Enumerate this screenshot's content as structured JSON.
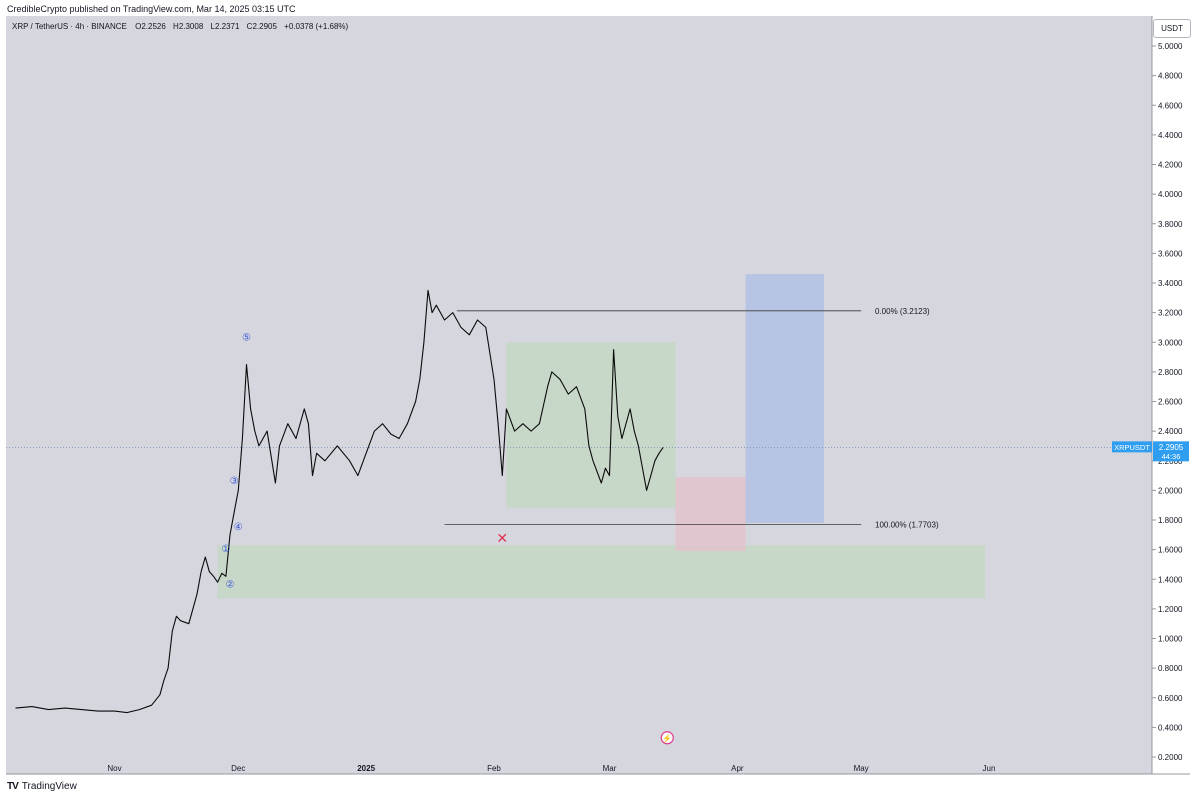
{
  "header": {
    "published": "CredibleCrypto published on TradingView.com, Mar 14, 2025 03:15 UTC",
    "symbol": "XRP / TetherUS · 4h · BINANCE",
    "ohlc": [
      {
        "key": "O",
        "value": "2.2526"
      },
      {
        "key": "H",
        "value": "2.3008"
      },
      {
        "key": "L",
        "value": "2.2371"
      },
      {
        "key": "C",
        "value": "2.2905"
      }
    ],
    "change": "+0.0378 (+1.68%)",
    "currency": "USDT"
  },
  "footer": {
    "brand": "TradingView",
    "logo_icon": "tradingview-logo-icon"
  },
  "price_tag": {
    "symbol": "XRPUSDT",
    "price": "2.2905",
    "countdown": "44:36",
    "color": "#2f9ef0"
  },
  "colors": {
    "background": "#d5d6de",
    "price_line": "#0b0b0b",
    "green_zone": "#c4d8c6",
    "red_zone": "#e3c3cd",
    "blue_zone": "#b3c1e4",
    "wave_label": "#3a55d8",
    "stop_marker": "#e03355"
  },
  "chart_data": {
    "type": "line",
    "title": "",
    "xlabel": "",
    "ylabel": "",
    "ylim": [
      0.2,
      5.1
    ],
    "y_ticks": [
      "0.2000",
      "0.4000",
      "0.6000",
      "0.8000",
      "1.0000",
      "1.2000",
      "1.4000",
      "1.6000",
      "1.8000",
      "2.0000",
      "2.2000",
      "2.4000",
      "2.6000",
      "2.8000",
      "3.0000",
      "3.2000",
      "3.4000",
      "3.6000",
      "3.8000",
      "4.0000",
      "4.2000",
      "4.4000",
      "4.6000",
      "4.8000",
      "5.0000"
    ],
    "x_ticks": [
      {
        "label": "Nov",
        "date": "2024-11-01"
      },
      {
        "label": "Dec",
        "date": "2024-12-01"
      },
      {
        "label": "2025",
        "date": "2025-01-01"
      },
      {
        "label": "Feb",
        "date": "2025-02-01"
      },
      {
        "label": "Mar",
        "date": "2025-03-01"
      },
      {
        "label": "Apr",
        "date": "2025-04-01"
      },
      {
        "label": "May",
        "date": "2025-05-01"
      },
      {
        "label": "Jun",
        "date": "2025-06-01"
      }
    ],
    "grid": false,
    "series": [
      {
        "points": [
          [
            "2024-10-08",
            0.53
          ],
          [
            "2024-10-12",
            0.54
          ],
          [
            "2024-10-16",
            0.52
          ],
          [
            "2024-10-20",
            0.53
          ],
          [
            "2024-10-24",
            0.52
          ],
          [
            "2024-10-28",
            0.51
          ],
          [
            "2024-11-01",
            0.51
          ],
          [
            "2024-11-04",
            0.5
          ],
          [
            "2024-11-07",
            0.52
          ],
          [
            "2024-11-10",
            0.55
          ],
          [
            "2024-11-12",
            0.62
          ],
          [
            "2024-11-13",
            0.72
          ],
          [
            "2024-11-14",
            0.8
          ],
          [
            "2024-11-15",
            1.05
          ],
          [
            "2024-11-16",
            1.15
          ],
          [
            "2024-11-17",
            1.12
          ],
          [
            "2024-11-19",
            1.1
          ],
          [
            "2024-11-21",
            1.3
          ],
          [
            "2024-11-22",
            1.45
          ],
          [
            "2024-11-23",
            1.55
          ],
          [
            "2024-11-24",
            1.45
          ],
          [
            "2024-11-25",
            1.42
          ],
          [
            "2024-11-26",
            1.38
          ],
          [
            "2024-11-27",
            1.44
          ],
          [
            "2024-11-28",
            1.42
          ],
          [
            "2024-11-29",
            1.7
          ],
          [
            "2024-11-30",
            1.85
          ],
          [
            "2024-12-01",
            2.0
          ],
          [
            "2024-12-02",
            2.35
          ],
          [
            "2024-12-03",
            2.85
          ],
          [
            "2024-12-04",
            2.55
          ],
          [
            "2024-12-05",
            2.4
          ],
          [
            "2024-12-06",
            2.3
          ],
          [
            "2024-12-08",
            2.4
          ],
          [
            "2024-12-10",
            2.05
          ],
          [
            "2024-12-11",
            2.3
          ],
          [
            "2024-12-13",
            2.45
          ],
          [
            "2024-12-15",
            2.35
          ],
          [
            "2024-12-17",
            2.55
          ],
          [
            "2024-12-18",
            2.45
          ],
          [
            "2024-12-19",
            2.1
          ],
          [
            "2024-12-20",
            2.25
          ],
          [
            "2024-12-22",
            2.2
          ],
          [
            "2024-12-25",
            2.3
          ],
          [
            "2024-12-28",
            2.2
          ],
          [
            "2024-12-30",
            2.1
          ],
          [
            "2025-01-01",
            2.25
          ],
          [
            "2025-01-03",
            2.4
          ],
          [
            "2025-01-05",
            2.45
          ],
          [
            "2025-01-07",
            2.38
          ],
          [
            "2025-01-09",
            2.35
          ],
          [
            "2025-01-11",
            2.45
          ],
          [
            "2025-01-13",
            2.6
          ],
          [
            "2025-01-14",
            2.75
          ],
          [
            "2025-01-15",
            3.0
          ],
          [
            "2025-01-16",
            3.35
          ],
          [
            "2025-01-17",
            3.2
          ],
          [
            "2025-01-18",
            3.25
          ],
          [
            "2025-01-20",
            3.15
          ],
          [
            "2025-01-22",
            3.2
          ],
          [
            "2025-01-24",
            3.1
          ],
          [
            "2025-01-26",
            3.05
          ],
          [
            "2025-01-28",
            3.15
          ],
          [
            "2025-01-30",
            3.1
          ],
          [
            "2025-02-01",
            2.75
          ],
          [
            "2025-02-02",
            2.45
          ],
          [
            "2025-02-03",
            2.1
          ],
          [
            "2025-02-04",
            2.55
          ],
          [
            "2025-02-06",
            2.4
          ],
          [
            "2025-02-08",
            2.45
          ],
          [
            "2025-02-10",
            2.4
          ],
          [
            "2025-02-12",
            2.45
          ],
          [
            "2025-02-14",
            2.7
          ],
          [
            "2025-02-15",
            2.8
          ],
          [
            "2025-02-17",
            2.75
          ],
          [
            "2025-02-19",
            2.65
          ],
          [
            "2025-02-21",
            2.7
          ],
          [
            "2025-02-23",
            2.55
          ],
          [
            "2025-02-24",
            2.3
          ],
          [
            "2025-02-25",
            2.2
          ],
          [
            "2025-02-27",
            2.05
          ],
          [
            "2025-02-28",
            2.15
          ],
          [
            "2025-03-01",
            2.1
          ],
          [
            "2025-03-02",
            2.95
          ],
          [
            "2025-03-03",
            2.5
          ],
          [
            "2025-03-04",
            2.35
          ],
          [
            "2025-03-06",
            2.55
          ],
          [
            "2025-03-07",
            2.4
          ],
          [
            "2025-03-08",
            2.3
          ],
          [
            "2025-03-09",
            2.15
          ],
          [
            "2025-03-10",
            2.0
          ],
          [
            "2025-03-11",
            2.1
          ],
          [
            "2025-03-12",
            2.2
          ],
          [
            "2025-03-13",
            2.25
          ],
          [
            "2025-03-14",
            2.29
          ]
        ]
      }
    ],
    "fib_levels": [
      {
        "label": "0.00% (3.2123)",
        "value": 3.2123,
        "from": "2025-01-23",
        "to": "2025-05-01"
      },
      {
        "label": "100.00% (1.7703)",
        "value": 1.7703,
        "from": "2025-01-20",
        "to": "2025-05-01"
      }
    ],
    "zones": [
      {
        "kind": "green",
        "x0": "2024-11-26",
        "x1": "2025-05-31",
        "y0": 1.27,
        "y1": 1.63
      },
      {
        "kind": "green",
        "x0": "2025-02-04",
        "x1": "2025-03-17",
        "y0": 1.88,
        "y1": 3.0
      },
      {
        "kind": "red",
        "x0": "2025-03-17",
        "x1": "2025-04-03",
        "y0": 1.59,
        "y1": 2.09
      },
      {
        "kind": "blue",
        "x0": "2025-04-03",
        "x1": "2025-04-22",
        "y0": 1.78,
        "y1": 3.46
      }
    ],
    "wave_labels": [
      {
        "label": "①",
        "date": "2024-11-28",
        "value": 1.61
      },
      {
        "label": "②",
        "date": "2024-11-29",
        "value": 1.37
      },
      {
        "label": "③",
        "date": "2024-11-30",
        "value": 2.07
      },
      {
        "label": "④",
        "date": "2024-12-01",
        "value": 1.76
      },
      {
        "label": "⑤",
        "date": "2024-12-03",
        "value": 3.04
      }
    ],
    "stop_marker": {
      "label": "✕",
      "date": "2025-02-03",
      "value": 1.68
    },
    "event_icon": {
      "name": "lightning-event-icon",
      "date": "2025-03-15",
      "value": 0.33
    },
    "last_price": 2.2905
  }
}
